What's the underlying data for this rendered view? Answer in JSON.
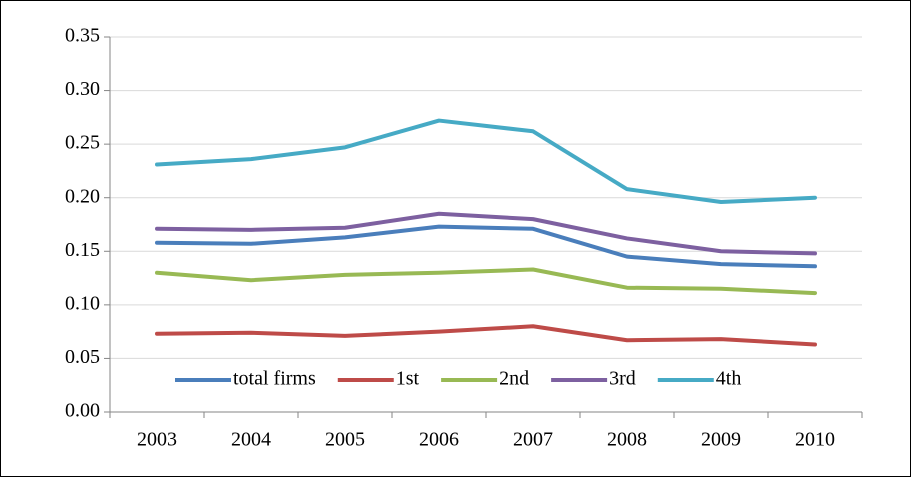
{
  "chart_data": {
    "type": "line",
    "categories": [
      "2003",
      "2004",
      "2005",
      "2006",
      "2007",
      "2008",
      "2009",
      "2010"
    ],
    "series": [
      {
        "name": "total firms",
        "color": "#4a7ebb",
        "values": [
          0.158,
          0.157,
          0.163,
          0.173,
          0.171,
          0.145,
          0.138,
          0.136
        ]
      },
      {
        "name": "1st",
        "color": "#be4b48",
        "values": [
          0.073,
          0.074,
          0.071,
          0.075,
          0.08,
          0.067,
          0.068,
          0.063
        ]
      },
      {
        "name": "2nd",
        "color": "#98b954",
        "values": [
          0.13,
          0.123,
          0.128,
          0.13,
          0.133,
          0.116,
          0.115,
          0.111
        ]
      },
      {
        "name": "3rd",
        "color": "#7d60a0",
        "values": [
          0.171,
          0.17,
          0.172,
          0.185,
          0.18,
          0.162,
          0.15,
          0.148
        ]
      },
      {
        "name": "4th",
        "color": "#46aac5",
        "values": [
          0.231,
          0.236,
          0.247,
          0.272,
          0.262,
          0.208,
          0.196,
          0.2
        ]
      }
    ],
    "ylim": [
      0,
      0.35
    ],
    "yticks": [
      {
        "value": 0,
        "label": "0.00"
      },
      {
        "value": 0.05,
        "label": "0.05"
      },
      {
        "value": 0.1,
        "label": "0.10"
      },
      {
        "value": 0.15,
        "label": "0.15"
      },
      {
        "value": 0.2,
        "label": "0.20"
      },
      {
        "value": 0.25,
        "label": "0.25"
      },
      {
        "value": 0.3,
        "label": "0.30"
      },
      {
        "value": 0.35,
        "label": "0.35"
      }
    ],
    "grid": true,
    "legend": "bottom"
  }
}
